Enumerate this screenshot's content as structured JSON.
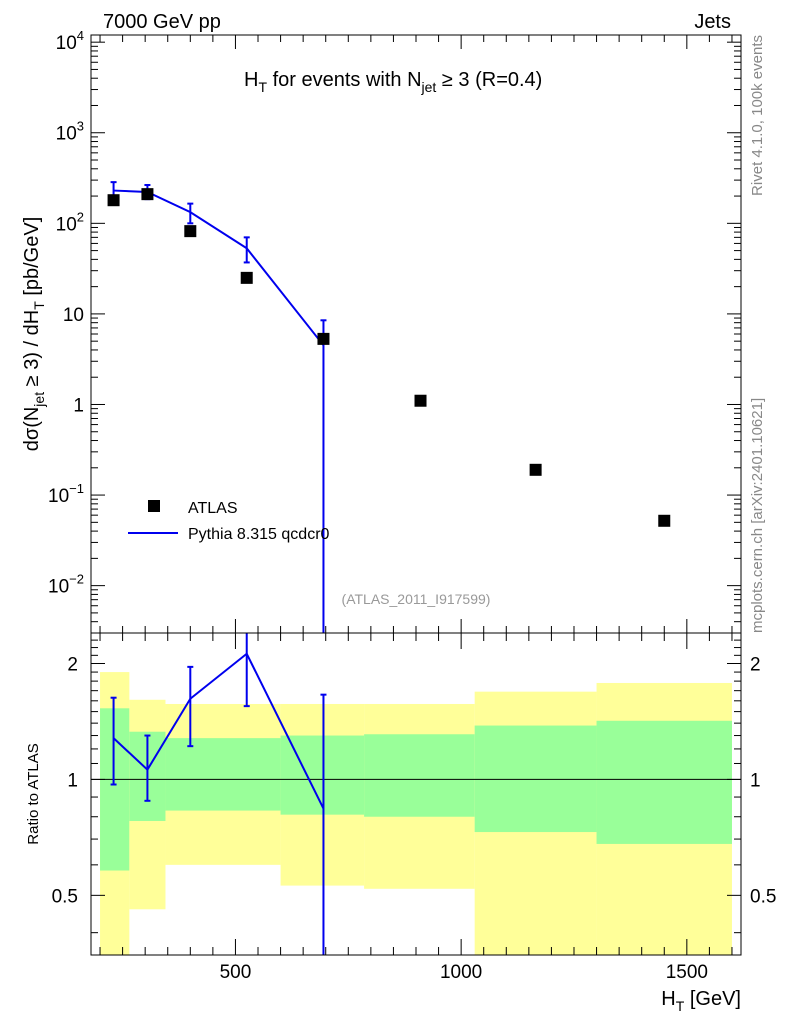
{
  "header": {
    "left_label": "7000 GeV pp",
    "right_label": "Jets"
  },
  "side_labels": {
    "rivet": "Rivet 4.1.0,  100k events",
    "mcplots": "mcplots.cern.ch [arXiv:2401.10621]"
  },
  "watermark": "(ATLAS_2011_I917599)",
  "colors": {
    "data": "#000000",
    "mc": "#0000ee",
    "band_inner": "#99ff99",
    "band_outer": "#ffff99"
  },
  "chart_data": [
    {
      "type": "scatter+line",
      "panel": "main",
      "title": {
        "p1": "H",
        "sub1": "T",
        "p2": " for events with N",
        "sub2": "jet",
        "p3": " ≥ 3 (R=0.4)"
      },
      "ylabel": {
        "p1": "dσ(N",
        "sub1": "jet",
        "p2": " ≥ 3) / dH",
        "sub2": "T",
        "p3": " [pb/GeV]"
      },
      "yscale": "log",
      "ylim": [
        0.003,
        12000
      ],
      "xlim": [
        180,
        1620
      ],
      "ytick_labels": [
        {
          "value": 0.01,
          "base": "10",
          "exp": "−2"
        },
        {
          "value": 0.1,
          "base": "10",
          "exp": "−1"
        },
        {
          "value": 1,
          "base": "1",
          "exp": ""
        },
        {
          "value": 10,
          "base": "10",
          "exp": ""
        },
        {
          "value": 100,
          "base": "10",
          "exp": "2"
        },
        {
          "value": 1000,
          "base": "10",
          "exp": "3"
        },
        {
          "value": 10000,
          "base": "10",
          "exp": "4"
        }
      ],
      "legend": {
        "position": "bottom-left",
        "entries": [
          "ATLAS",
          "Pythia 8.315 qcdcr0"
        ]
      },
      "series": [
        {
          "name": "ATLAS",
          "style": "markers",
          "points": [
            {
              "x": 230,
              "y": 180
            },
            {
              "x": 305,
              "y": 210
            },
            {
              "x": 400,
              "y": 82
            },
            {
              "x": 525,
              "y": 25
            },
            {
              "x": 695,
              "y": 5.3
            },
            {
              "x": 910,
              "y": 1.1
            },
            {
              "x": 1165,
              "y": 0.19
            },
            {
              "x": 1450,
              "y": 0.052
            }
          ]
        },
        {
          "name": "Pythia 8.315 qcdcr0",
          "style": "line",
          "points": [
            {
              "x": 230,
              "y": 230,
              "lo": 185,
              "hi": 285
            },
            {
              "x": 305,
              "y": 222,
              "lo": 185,
              "hi": 265
            },
            {
              "x": 400,
              "y": 133,
              "lo": 100,
              "hi": 165
            },
            {
              "x": 525,
              "y": 53,
              "lo": 37,
              "hi": 70
            },
            {
              "x": 695,
              "y": 4.5,
              "lo": 0.002,
              "hi": 8.5
            }
          ]
        }
      ]
    },
    {
      "type": "ratio",
      "panel": "ratio",
      "ylabel": "Ratio to ATLAS",
      "xlabel": {
        "p1": "H",
        "sub1": "T",
        "p2": " [GeV]"
      },
      "yscale": "log",
      "ylim": [
        0.35,
        2.4
      ],
      "xlim": [
        180,
        1620
      ],
      "xtick_labels": [
        "500",
        "1000",
        "1500"
      ],
      "xticks": [
        500,
        1000,
        1500
      ],
      "ytick_labels": [
        "0.5",
        "1",
        "2"
      ],
      "yticks": [
        0.5,
        1,
        2
      ],
      "bands": [
        {
          "x0": 200,
          "x1": 265,
          "inner_lo": 0.58,
          "inner_hi": 1.53,
          "outer_lo": 0.35,
          "outer_hi": 1.9
        },
        {
          "x0": 265,
          "x1": 345,
          "inner_lo": 0.78,
          "inner_hi": 1.33,
          "outer_lo": 0.46,
          "outer_hi": 1.61
        },
        {
          "x0": 345,
          "x1": 600,
          "inner_lo": 0.83,
          "inner_hi": 1.28,
          "outer_lo": 0.6,
          "outer_hi": 1.57
        },
        {
          "x0": 600,
          "x1": 785,
          "inner_lo": 0.81,
          "inner_hi": 1.3,
          "outer_lo": 0.53,
          "outer_hi": 1.57
        },
        {
          "x0": 785,
          "x1": 1030,
          "inner_lo": 0.8,
          "inner_hi": 1.31,
          "outer_lo": 0.52,
          "outer_hi": 1.57
        },
        {
          "x0": 1030,
          "x1": 1300,
          "inner_lo": 0.73,
          "inner_hi": 1.38,
          "outer_lo": 0.35,
          "outer_hi": 1.69
        },
        {
          "x0": 1300,
          "x1": 1600,
          "inner_lo": 0.68,
          "inner_hi": 1.42,
          "outer_lo": 0.35,
          "outer_hi": 1.78
        }
      ],
      "series": [
        {
          "name": "Pythia 8.315 qcdcr0",
          "points": [
            {
              "x": 230,
              "y": 1.28,
              "lo": 0.97,
              "hi": 1.63
            },
            {
              "x": 305,
              "y": 1.06,
              "lo": 0.88,
              "hi": 1.3
            },
            {
              "x": 400,
              "y": 1.62,
              "lo": 1.22,
              "hi": 1.96
            },
            {
              "x": 525,
              "y": 2.12,
              "lo": 1.55,
              "hi": 2.4
            },
            {
              "x": 695,
              "y": 0.84,
              "lo": 0.35,
              "hi": 1.66
            }
          ]
        }
      ]
    }
  ]
}
